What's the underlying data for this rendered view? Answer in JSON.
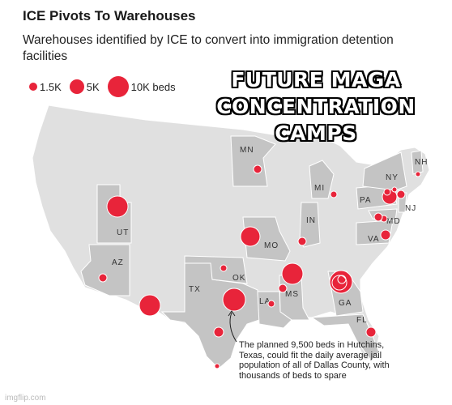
{
  "header": {
    "title": "ICE Pivots To Warehouses",
    "subtitle": "Warehouses identified by ICE to convert into immigration detention facilities"
  },
  "legend": {
    "items": [
      {
        "label": "1.5K",
        "size": 1500
      },
      {
        "label": "5K",
        "size": 5000
      },
      {
        "label": "10K beds",
        "size": 10000
      }
    ]
  },
  "meme_caption": {
    "line1": "FUTURE MAGA",
    "line2": "CONCENTRATION CAMPS"
  },
  "colors": {
    "marker": "#e8243a",
    "highlight_state": "#c4c4c4",
    "base_state": "#e0e0e0",
    "border": "#ffffff"
  },
  "state_labels": [
    "MN",
    "NH",
    "NY",
    "MI",
    "PA",
    "NJ",
    "UT",
    "IN",
    "MD",
    "VA",
    "MO",
    "AZ",
    "OK",
    "TX",
    "MS",
    "LA",
    "GA",
    "FL"
  ],
  "annotation": {
    "text": "The planned 9,500 beds in Hutchins, Texas, could fit the daily average jail population of all of Dallas County, with thousands of beds to spare"
  },
  "watermark": "imgflip.com"
}
